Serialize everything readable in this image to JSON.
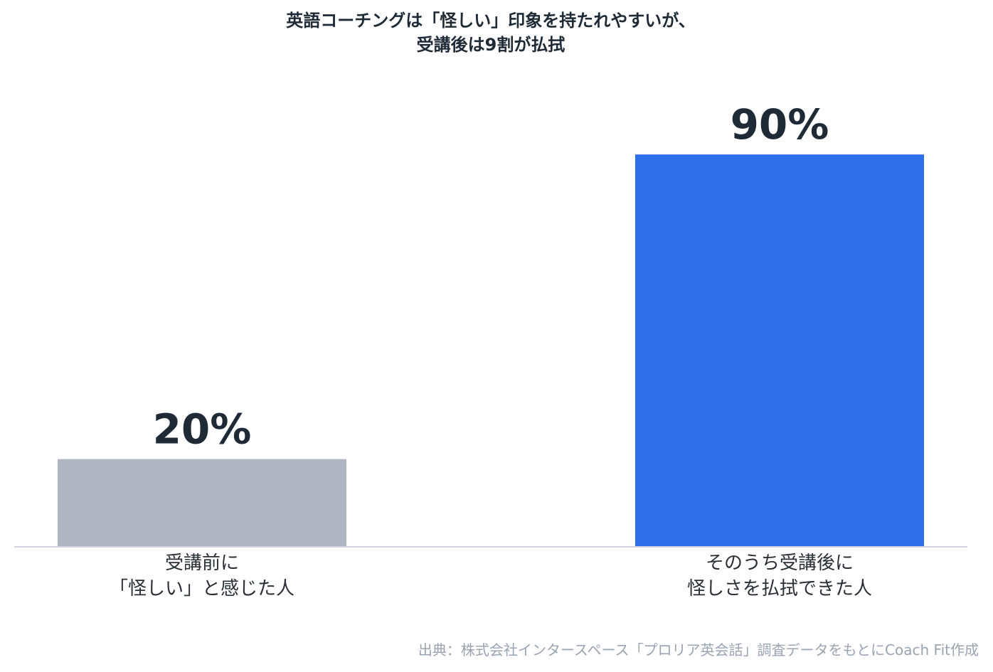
{
  "chart_data": {
    "type": "bar",
    "title": [
      "英語コーチングは「怪しい」印象を持たれやすいが、",
      "受講後は9割が払拭"
    ],
    "categories": [
      [
        "受講前に",
        "「怪しい」と感じた人"
      ],
      [
        "そのうち受講後に",
        "怪しさを払拭できた人"
      ]
    ],
    "values": [
      20,
      90
    ],
    "value_labels": [
      "20%",
      "90%"
    ],
    "colors": [
      "#aeb4c1",
      "#2f6fea"
    ],
    "ylim": [
      0,
      100
    ],
    "grid": false,
    "axis_color": "#cfd5e2"
  },
  "source": "出典：株式会社インタースペース「プロリア英会話」調査データをもとにCoach Fit作成"
}
